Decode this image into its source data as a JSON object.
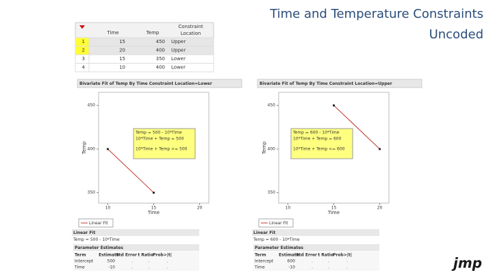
{
  "slide": {
    "title": "Time and Temperature Constraints",
    "subtitle": "Uncoded",
    "logo": "jmp"
  },
  "table": {
    "header": [
      "Time",
      "Temp",
      "Constraint Location"
    ],
    "rows": [
      [
        "1",
        15,
        450,
        "Upper"
      ],
      [
        "2",
        20,
        400,
        "Upper"
      ],
      [
        "3",
        15,
        350,
        "Lower"
      ],
      [
        "4",
        10,
        400,
        "Lower"
      ]
    ]
  },
  "panels": [
    {
      "title": "Bivariate Fit of Temp By Time Constraint Location=Lower",
      "chart": {
        "type": "line",
        "x": [
          10,
          15
        ],
        "values": [
          400,
          350
        ],
        "color": "#c0392b",
        "xlabel": "Time",
        "ylabel": "Temp",
        "xlim": [
          9,
          21
        ],
        "ylim": [
          338,
          465
        ],
        "xticks": [
          10,
          15,
          20
        ],
        "yticks": [
          350,
          400,
          450
        ],
        "annotation": [
          "Temp = 500 - 10*Time",
          "10*Time + Temp = 500",
          "10*Time + Temp >= 500"
        ],
        "legend": "Linear Fit"
      },
      "fit": {
        "title": "Linear Fit",
        "equation": "Temp = 500 - 10*Time",
        "estimates_title": "Parameter Estimates",
        "header": [
          "Term",
          "Estimate",
          "Std Error",
          "t Ratio",
          "Prob>|t|"
        ],
        "rows": [
          [
            "Intercept",
            500,
            ".",
            ".",
            "."
          ],
          [
            "Time",
            -10,
            ".",
            ".",
            "."
          ]
        ]
      }
    },
    {
      "title": "Bivariate Fit of Temp By Time Constraint Location=Upper",
      "chart": {
        "type": "line",
        "x": [
          15,
          20
        ],
        "values": [
          450,
          400
        ],
        "color": "#c0392b",
        "xlabel": "Time",
        "ylabel": "Temp",
        "xlim": [
          9,
          21
        ],
        "ylim": [
          338,
          465
        ],
        "xticks": [
          10,
          15,
          20
        ],
        "yticks": [
          350,
          400,
          450
        ],
        "annotation": [
          "Temp = 600 - 10*Time",
          "10*Time + Temp = 600",
          "10*Time + Temp <= 600"
        ],
        "legend": "Linear Fit"
      },
      "fit": {
        "title": "Linear Fit",
        "equation": "Temp = 600 - 10*Time",
        "estimates_title": "Parameter Estimates",
        "header": [
          "Term",
          "Estimate",
          "Std Error",
          "t Ratio",
          "Prob>|t|"
        ],
        "rows": [
          [
            "Intercept",
            600,
            ".",
            ".",
            "."
          ],
          [
            "Time",
            -10,
            ".",
            ".",
            "."
          ]
        ]
      }
    }
  ]
}
